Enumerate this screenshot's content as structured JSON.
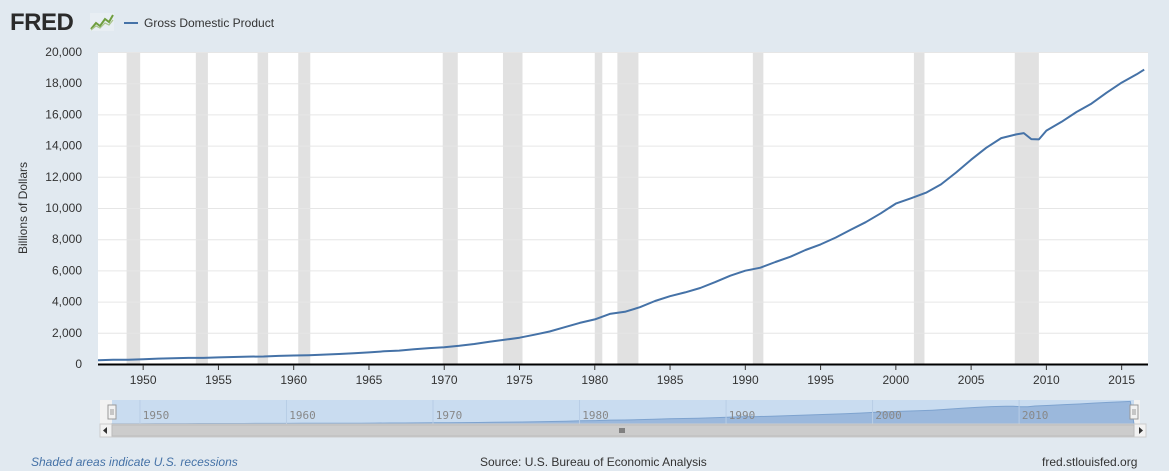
{
  "header": {
    "logo_text": "FRED",
    "logo_icon": "fred-line-graph-icon",
    "legend_label": "Gross Domestic Product",
    "legend_color": "#4572a7"
  },
  "footer": {
    "recession_note": "Shaded areas indicate U.S. recessions",
    "source": "Source: U.S. Bureau of Economic Analysis",
    "url": "fred.stlouisfed.org"
  },
  "navigator": {
    "tick_labels": [
      "1950",
      "1960",
      "1970",
      "1980",
      "1990",
      "2000",
      "2010"
    ],
    "scroll_left_icon": "arrow-left-icon",
    "scroll_right_icon": "arrow-right-icon",
    "handle_icon": "grip-icon"
  },
  "chart_data": {
    "type": "line",
    "title": "",
    "ylabel": "Billions of Dollars",
    "xlabel": "",
    "xlim": [
      1947.0,
      2016.75
    ],
    "ylim": [
      0,
      20000
    ],
    "x_ticks": [
      "1950",
      "1955",
      "1960",
      "1965",
      "1970",
      "1975",
      "1980",
      "1985",
      "1990",
      "1995",
      "2000",
      "2005",
      "2010",
      "2015"
    ],
    "y_ticks": [
      "0",
      "2,000",
      "4,000",
      "6,000",
      "8,000",
      "10,000",
      "12,000",
      "14,000",
      "16,000",
      "18,000",
      "20,000"
    ],
    "grid": true,
    "legend_position": "top-left",
    "recessions": [
      [
        1948.9,
        1949.8
      ],
      [
        1953.5,
        1954.3
      ],
      [
        1957.6,
        1958.3
      ],
      [
        1960.3,
        1961.1
      ],
      [
        1969.9,
        1970.9
      ],
      [
        1973.9,
        1975.2
      ],
      [
        1980.0,
        1980.5
      ],
      [
        1981.5,
        1982.9
      ],
      [
        1990.5,
        1991.2
      ],
      [
        2001.2,
        2001.9
      ],
      [
        2007.9,
        2009.5
      ]
    ],
    "series": [
      {
        "name": "Gross Domestic Product",
        "color": "#4572a7",
        "x": [
          1947,
          1948,
          1949,
          1950,
          1951,
          1952,
          1953,
          1954,
          1955,
          1956,
          1957,
          1958,
          1959,
          1960,
          1961,
          1962,
          1963,
          1964,
          1965,
          1966,
          1967,
          1968,
          1969,
          1970,
          1971,
          1972,
          1973,
          1974,
          1975,
          1976,
          1977,
          1978,
          1979,
          1980,
          1981,
          1982,
          1983,
          1984,
          1985,
          1986,
          1987,
          1988,
          1989,
          1990,
          1991,
          1992,
          1993,
          1994,
          1995,
          1996,
          1997,
          1998,
          1999,
          2000,
          2001,
          2002,
          2003,
          2004,
          2005,
          2006,
          2007,
          2008,
          2008.5,
          2009,
          2009.5,
          2010,
          2011,
          2012,
          2013,
          2014,
          2015,
          2016,
          2016.5
        ],
        "values": [
          244,
          270,
          272,
          300,
          348,
          368,
          389,
          391,
          426,
          450,
          474,
          482,
          522,
          543,
          563,
          605,
          638,
          686,
          744,
          815,
          862,
          943,
          1019,
          1075,
          1168,
          1282,
          1428,
          1549,
          1689,
          1878,
          2086,
          2357,
          2632,
          2862,
          3211,
          3345,
          3638,
          4041,
          4347,
          4590,
          4870,
          5253,
          5658,
          5980,
          6174,
          6539,
          6879,
          7309,
          7664,
          8100,
          8609,
          9089,
          9661,
          10285,
          10622,
          10978,
          11511,
          12275,
          13094,
          13856,
          14478,
          14719,
          14800,
          14418,
          14400,
          14964,
          15518,
          16155,
          16692,
          17393,
          18037,
          18570,
          18870
        ]
      }
    ]
  }
}
